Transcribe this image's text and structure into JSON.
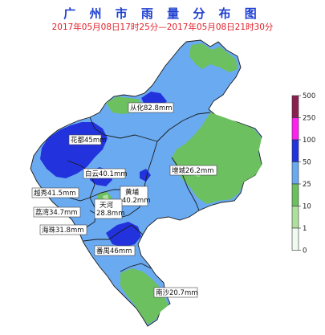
{
  "title": "广 州 市 雨 量 分 布 图",
  "subtitle": "2017年05月08日17时25分—2017年05月08日21时30分",
  "colors": {
    "title": "#1f3fd1",
    "subtitle": "#e0202a",
    "boundary": "#1a1a1a"
  },
  "districts": [
    {
      "label": "从化",
      "value": "82.8mm"
    },
    {
      "label": "花都",
      "value": "45mm"
    },
    {
      "label": "白云",
      "value": "40.1mm"
    },
    {
      "label": "增城",
      "value": "26.2mm"
    },
    {
      "label": "黄埔",
      "value": "40.2mm"
    },
    {
      "label": "天河",
      "value": "28.8mm"
    },
    {
      "label": "越秀",
      "value": "41.5mm"
    },
    {
      "label": "荔湾",
      "value": "34.7mm"
    },
    {
      "label": "海珠",
      "value": "31.8mm"
    },
    {
      "label": "番禺",
      "value": "46mm"
    },
    {
      "label": "南沙",
      "value": "20.7mm"
    }
  ],
  "legend": {
    "ticks": [
      "500",
      "250",
      "100",
      "50",
      "25",
      "10",
      "1",
      "0"
    ],
    "bands": [
      {
        "from": "250",
        "to": "500",
        "color": "#8b2050"
      },
      {
        "from": "100",
        "to": "250",
        "color": "#ff22ee"
      },
      {
        "from": "50",
        "to": "100",
        "color": "#2233dd"
      },
      {
        "from": "25",
        "to": "50",
        "color": "#6aaaf0"
      },
      {
        "from": "10",
        "to": "25",
        "color": "#6cc060"
      },
      {
        "from": "1",
        "to": "10",
        "color": "#b0e0a0"
      },
      {
        "from": "0",
        "to": "1",
        "color": "#f0fbf0"
      }
    ]
  }
}
